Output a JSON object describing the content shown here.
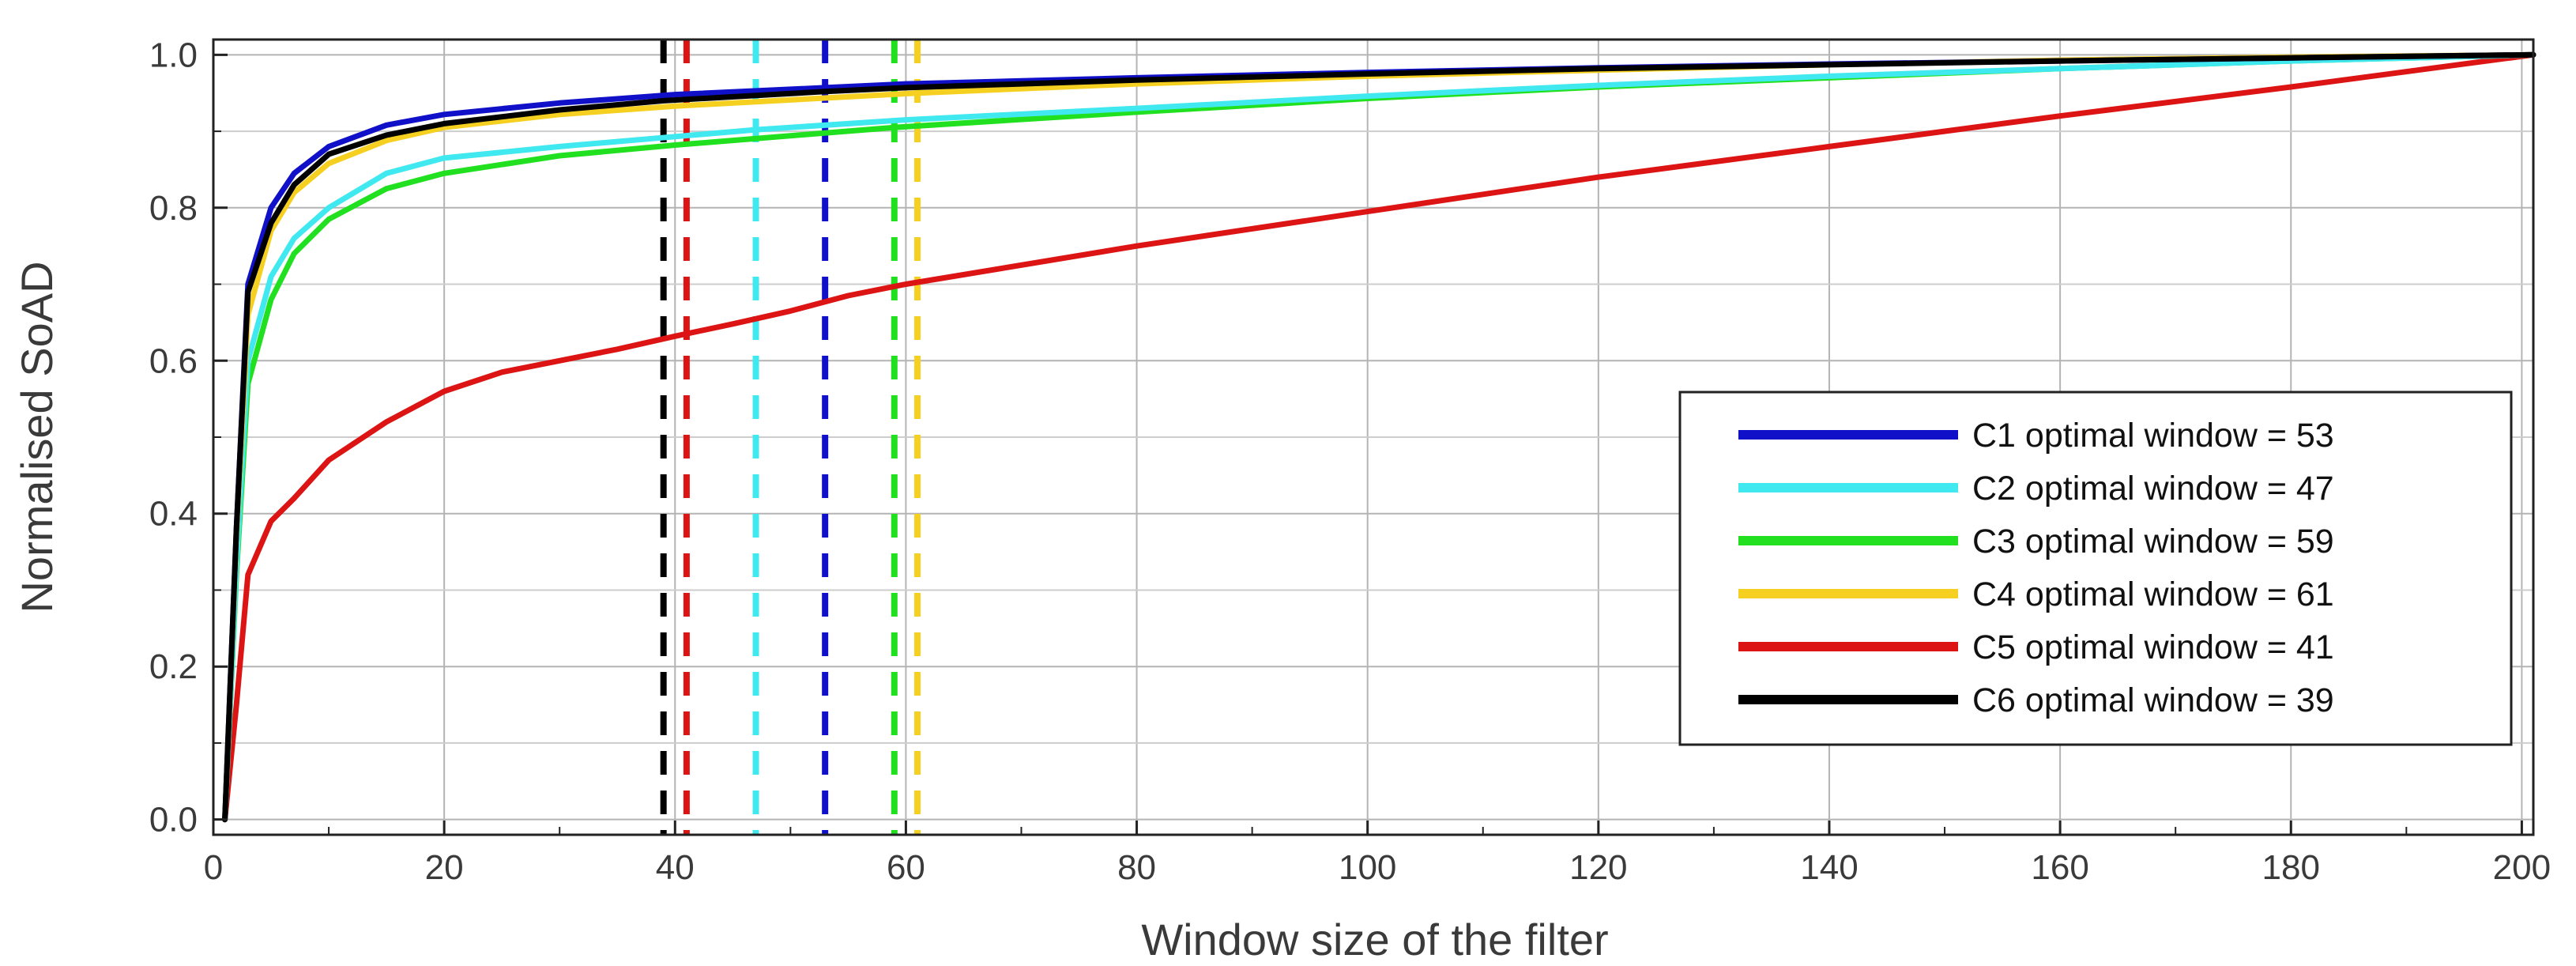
{
  "chart_data": {
    "type": "line",
    "title": "",
    "xlabel": "Window size of the filter",
    "ylabel": "Normalised SoAD",
    "xlim": [
      0,
      201
    ],
    "ylim": [
      -0.02,
      1.02
    ],
    "xticks": [
      0,
      20,
      40,
      60,
      80,
      100,
      120,
      140,
      160,
      180,
      200
    ],
    "xtick_labels": [
      "0",
      "20",
      "40",
      "60",
      "80",
      "100",
      "120",
      "140",
      "160",
      "180",
      "200"
    ],
    "yticks": [
      0.0,
      0.2,
      0.4,
      0.6,
      0.8,
      1.0
    ],
    "ytick_labels": [
      "0.0",
      "0.2",
      "0.4",
      "0.6",
      "0.8",
      "1.0"
    ],
    "x_minor_ticks": [
      10,
      30,
      50,
      70,
      90,
      110,
      130,
      150,
      170,
      190
    ],
    "y_minor_ticks": [
      0.1,
      0.3,
      0.5,
      0.7,
      0.9
    ],
    "grid": true,
    "legend_position": "lower-right",
    "series": [
      {
        "name": "C1 optimal window = 53",
        "color": "#1010c8",
        "optimal_window": 53,
        "x": [
          1,
          2,
          3,
          5,
          7,
          10,
          15,
          20,
          30,
          40,
          53,
          60,
          80,
          100,
          120,
          140,
          160,
          180,
          201
        ],
        "y": [
          0.0,
          0.38,
          0.7,
          0.8,
          0.845,
          0.88,
          0.908,
          0.922,
          0.937,
          0.948,
          0.957,
          0.962,
          0.97,
          0.977,
          0.983,
          0.988,
          0.992,
          0.996,
          1.0
        ]
      },
      {
        "name": "C2 optimal window = 47",
        "color": "#40e8f0",
        "optimal_window": 47,
        "x": [
          1,
          2,
          3,
          5,
          7,
          10,
          15,
          20,
          30,
          40,
          47,
          60,
          80,
          100,
          120,
          140,
          160,
          180,
          201
        ],
        "y": [
          0.0,
          0.33,
          0.6,
          0.71,
          0.76,
          0.8,
          0.845,
          0.865,
          0.88,
          0.893,
          0.902,
          0.915,
          0.93,
          0.946,
          0.96,
          0.972,
          0.982,
          0.992,
          1.0
        ]
      },
      {
        "name": "C3 optimal window = 59",
        "color": "#20e020",
        "optimal_window": 59,
        "x": [
          1,
          2,
          3,
          5,
          7,
          10,
          15,
          20,
          30,
          40,
          59,
          80,
          100,
          120,
          140,
          160,
          180,
          201
        ],
        "y": [
          0.0,
          0.32,
          0.57,
          0.68,
          0.74,
          0.785,
          0.825,
          0.845,
          0.868,
          0.882,
          0.905,
          0.925,
          0.943,
          0.958,
          0.97,
          0.982,
          0.992,
          1.0
        ]
      },
      {
        "name": "C4 optimal window = 61",
        "color": "#f5d020",
        "optimal_window": 61,
        "x": [
          1,
          2,
          3,
          5,
          7,
          10,
          15,
          20,
          30,
          40,
          61,
          80,
          100,
          120,
          140,
          160,
          180,
          201
        ],
        "y": [
          0.0,
          0.37,
          0.66,
          0.77,
          0.82,
          0.858,
          0.888,
          0.905,
          0.922,
          0.933,
          0.95,
          0.962,
          0.972,
          0.98,
          0.987,
          0.993,
          0.997,
          1.0
        ]
      },
      {
        "name": "C5 optimal window = 41",
        "color": "#dc1414",
        "optimal_window": 41,
        "x": [
          1,
          2,
          3,
          5,
          7,
          10,
          15,
          20,
          25,
          30,
          35,
          40,
          45,
          50,
          55,
          60,
          80,
          100,
          120,
          140,
          160,
          180,
          201
        ],
        "y": [
          0.0,
          0.15,
          0.32,
          0.39,
          0.42,
          0.47,
          0.52,
          0.56,
          0.585,
          0.6,
          0.615,
          0.632,
          0.648,
          0.665,
          0.685,
          0.7,
          0.75,
          0.795,
          0.84,
          0.88,
          0.92,
          0.958,
          1.0
        ]
      },
      {
        "name": "C6 optimal window = 39",
        "color": "#000000",
        "optimal_window": 39,
        "x": [
          1,
          2,
          3,
          5,
          7,
          10,
          15,
          20,
          30,
          39,
          53,
          60,
          80,
          100,
          120,
          140,
          160,
          180,
          201
        ],
        "y": [
          0.0,
          0.38,
          0.69,
          0.78,
          0.83,
          0.87,
          0.895,
          0.91,
          0.928,
          0.94,
          0.952,
          0.957,
          0.967,
          0.975,
          0.982,
          0.987,
          0.992,
          0.996,
          1.0
        ]
      }
    ]
  }
}
